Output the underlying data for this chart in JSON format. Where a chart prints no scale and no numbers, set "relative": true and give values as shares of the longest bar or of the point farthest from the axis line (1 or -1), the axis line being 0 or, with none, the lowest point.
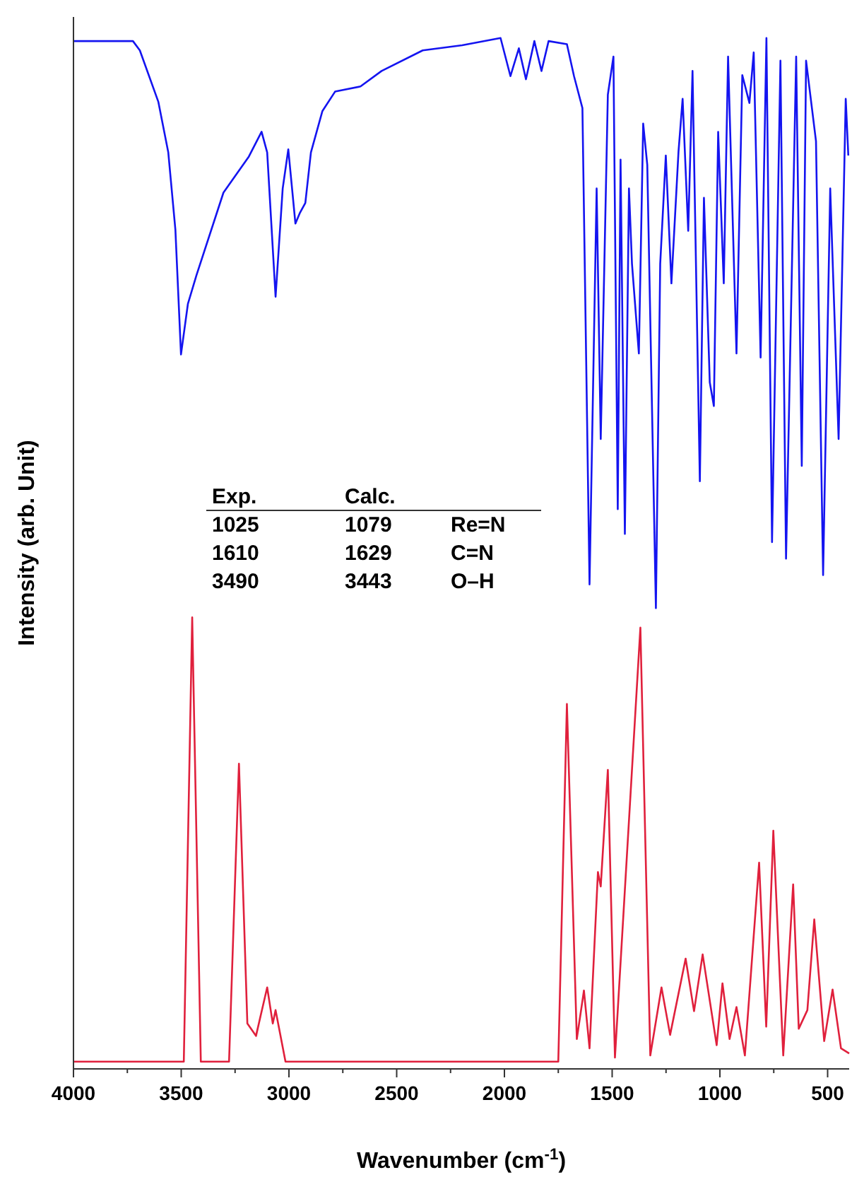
{
  "chart_data": {
    "type": "line",
    "relative": true,
    "xlabel": "Wavenumber (cm$^{-1}$)",
    "ylabel": "Intensity (arb. Unit)",
    "tick_labels": "x",
    "grid": false,
    "line_style": "solid",
    "xlim": [
      4000,
      400
    ],
    "xticks": [
      4000,
      {
        "value": 3750,
        "label": null
      },
      3500,
      {
        "value": 3250,
        "label": null
      },
      3000,
      {
        "value": 2750,
        "label": null
      },
      2500,
      {
        "value": 2250,
        "label": null
      },
      2000,
      {
        "value": 1750,
        "label": null
      },
      1500,
      {
        "value": 1250,
        "label": null
      },
      1000,
      {
        "value": 750,
        "label": null
      },
      500
    ],
    "annotations": [
      "Exp.",
      "Calc.",
      "1025",
      "1079",
      "Re=N",
      "1610",
      "1629",
      "C=N",
      "3490",
      "3443",
      "O–H"
    ],
    "series": [
      {
        "color": "#1414f0",
        "x": [
          4000,
          3724,
          3692,
          3606,
          3560,
          3527,
          3501,
          3469,
          3429,
          3304,
          3186,
          3127,
          3101,
          3062,
          3029,
          3003,
          2970,
          2950,
          2924,
          2898,
          2845,
          2786,
          2668,
          2570,
          2379,
          2196,
          2018,
          1972,
          1933,
          1900,
          1861,
          1828,
          1795,
          1710,
          1677,
          1638,
          1605,
          1572,
          1553,
          1520,
          1494,
          1474,
          1461,
          1441,
          1422,
          1408,
          1376,
          1356,
          1337,
          1297,
          1277,
          1251,
          1225,
          1192,
          1173,
          1147,
          1127,
          1093,
          1074,
          1047,
          1028,
          1008,
          982,
          962,
          923,
          896,
          863,
          843,
          811,
          784,
          758,
          719,
          693,
          646,
          620,
          600,
          554,
          521,
          488,
          449,
          416,
          404
        ],
        "values": [
          0.997,
          0.997,
          0.988,
          0.938,
          0.889,
          0.814,
          0.693,
          0.742,
          0.77,
          0.85,
          0.885,
          0.909,
          0.889,
          0.749,
          0.854,
          0.892,
          0.82,
          0.83,
          0.84,
          0.889,
          0.929,
          0.948,
          0.953,
          0.968,
          0.988,
          0.993,
          1,
          0.963,
          0.99,
          0.96,
          0.997,
          0.968,
          0.997,
          0.994,
          0.963,
          0.932,
          0.47,
          0.854,
          0.611,
          0.945,
          0.982,
          0.543,
          0.882,
          0.519,
          0.854,
          0.781,
          0.694,
          0.917,
          0.877,
          0.447,
          0.781,
          0.886,
          0.762,
          0.89,
          0.941,
          0.813,
          0.968,
          0.57,
          0.845,
          0.666,
          0.643,
          0.909,
          0.762,
          0.982,
          0.694,
          0.964,
          0.937,
          0.986,
          0.69,
          1,
          0.511,
          0.978,
          0.495,
          0.982,
          0.585,
          0.978,
          0.9,
          0.479,
          0.854,
          0.611,
          0.941,
          0.886
        ]
      },
      {
        "color": "#e0203c",
        "x": [
          4000,
          3488,
          3449,
          3409,
          3278,
          3232,
          3193,
          3153,
          3101,
          3075,
          3062,
          3016,
          1750,
          1710,
          1664,
          1631,
          1605,
          1566,
          1553,
          1520,
          1487,
          1369,
          1323,
          1271,
          1231,
          1159,
          1120,
          1080,
          1015,
          988,
          955,
          923,
          884,
          818,
          785,
          752,
          706,
          660,
          634,
          594,
          562,
          516,
          477,
          438,
          400
        ],
        "values": [
          0.007,
          0.007,
          0.438,
          0.007,
          0.007,
          0.296,
          0.044,
          0.032,
          0.079,
          0.044,
          0.057,
          0.007,
          0.007,
          0.354,
          0.029,
          0.076,
          0.02,
          0.191,
          0.177,
          0.29,
          0.011,
          0.428,
          0.013,
          0.079,
          0.033,
          0.107,
          0.056,
          0.111,
          0.023,
          0.083,
          0.029,
          0.06,
          0.013,
          0.2,
          0.041,
          0.231,
          0.013,
          0.179,
          0.039,
          0.057,
          0.145,
          0.027,
          0.077,
          0.02,
          0.015
        ]
      }
    ]
  }
}
